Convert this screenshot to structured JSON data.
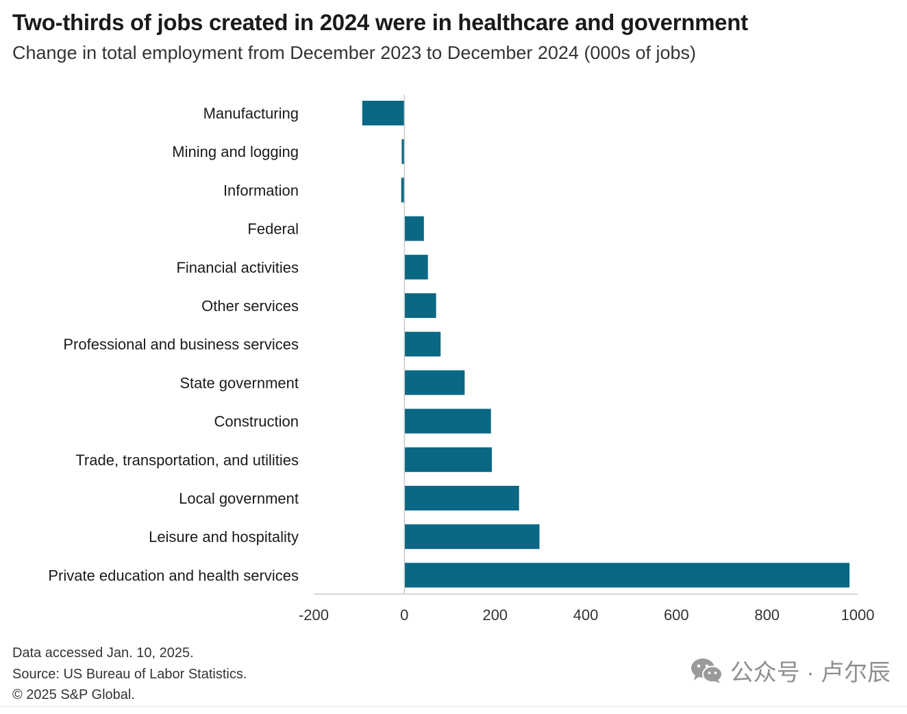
{
  "chart_data": {
    "type": "bar",
    "orientation": "horizontal",
    "title": "Two-thirds of jobs created in 2024 were in healthcare and government",
    "subtitle": "Change in total employment from December 2023 to December 2024 (000s of jobs)",
    "categories": [
      "Manufacturing",
      "Mining and logging",
      "Information",
      "Federal",
      "Financial activities",
      "Other services",
      "Professional and business services",
      "State government",
      "Construction",
      "Trade, transportation, and utilities",
      "Local government",
      "Leisure and hospitality",
      "Private education and health services"
    ],
    "values": [
      -93,
      -6,
      -7,
      43,
      52,
      70,
      80,
      133,
      191,
      193,
      253,
      298,
      982
    ],
    "xlim": [
      -200,
      1000
    ],
    "xticks": [
      "-200",
      "0",
      "200",
      "400",
      "600",
      "800",
      "1000"
    ],
    "bar_color": "#0a6884",
    "grid": false
  },
  "footer": {
    "accessed": "Data accessed Jan. 10, 2025.",
    "source": "Source: US Bureau of Labor Statistics.",
    "copyright": "© 2025 S&P Global."
  },
  "watermark": {
    "text": "公众号 · 卢尔辰",
    "icon": "wechat-icon"
  }
}
